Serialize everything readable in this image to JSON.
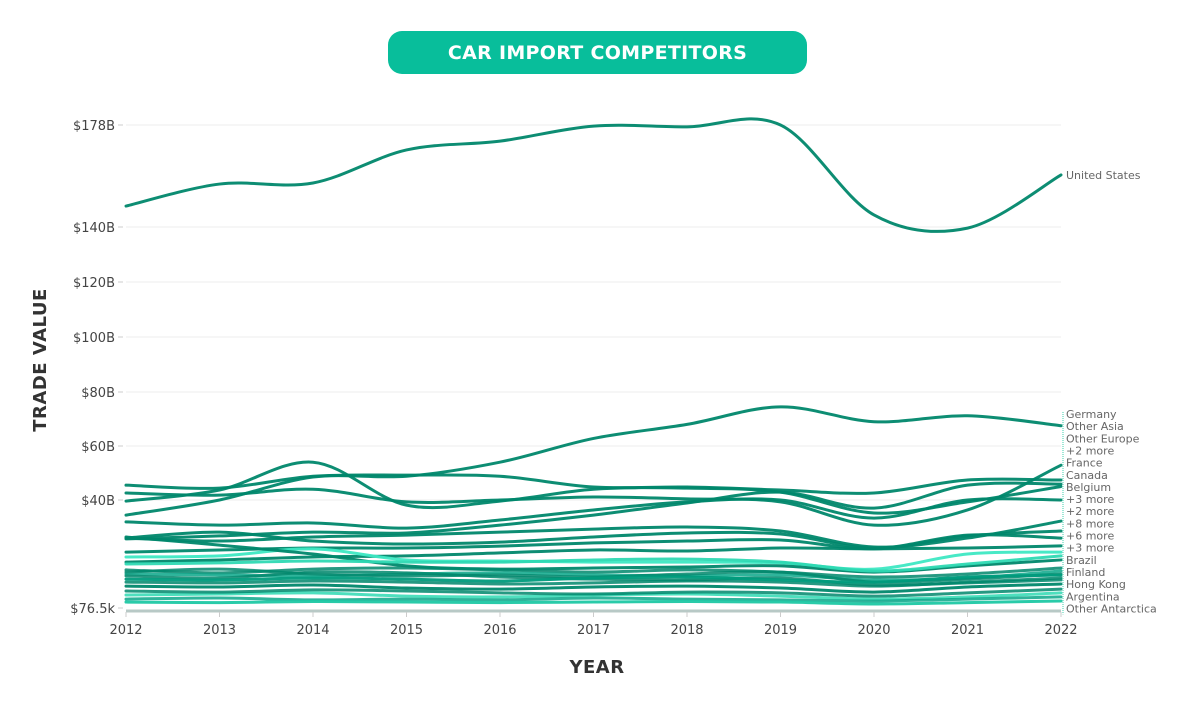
{
  "chart_data": {
    "type": "line",
    "title": "CAR IMPORT COMPETITORS",
    "xlabel": "YEAR",
    "ylabel": "TRADE VALUE",
    "x": [
      2012,
      2013,
      2014,
      2015,
      2016,
      2017,
      2018,
      2019,
      2020,
      2021,
      2022
    ],
    "x_tick_labels": [
      "2012",
      "2013",
      "2014",
      "2015",
      "2016",
      "2017",
      "2018",
      "2019",
      "2020",
      "2021",
      "2022"
    ],
    "y_ticks": [
      {
        "value": 7.65e-05,
        "label": "$76.5k"
      },
      {
        "value": 40,
        "label": "$40B"
      },
      {
        "value": 60,
        "label": "$60B"
      },
      {
        "value": 80,
        "label": "$80B"
      },
      {
        "value": 100,
        "label": "$100B"
      },
      {
        "value": 120,
        "label": "$120B"
      },
      {
        "value": 140,
        "label": "$140B"
      },
      {
        "value": 178,
        "label": "$178B"
      }
    ],
    "y_unit": "USD billions",
    "ylim": [
      7.65e-05,
      178
    ],
    "grid": true,
    "legend": "end-of-line labels (right)",
    "series": [
      {
        "name": "United States",
        "color": "#00876c",
        "values": [
          147.8,
          156.0,
          156.4,
          168.7,
          172.0,
          177.6,
          177.3,
          178.0,
          144.5,
          139.6,
          159.4
        ]
      },
      {
        "name": "Germany",
        "color": "#00876c",
        "values": [
          34.4,
          40.0,
          48.5,
          48.8,
          54.0,
          62.8,
          68.0,
          74.5,
          69.0,
          71.2,
          67.5
        ]
      },
      {
        "name": "Other Asia",
        "color": "#00876c",
        "values": [
          45.5,
          44.4,
          48.8,
          49.2,
          48.8,
          44.8,
          44.8,
          43.7,
          42.6,
          47.4,
          47.4
        ]
      },
      {
        "name": "Other Europe",
        "color": "#00876c",
        "values": [
          39.6,
          43.7,
          54.0,
          38.1,
          39.6,
          44.0,
          44.4,
          42.9,
          35.2,
          39.3,
          45.0
        ]
      },
      {
        "name": "France",
        "color": "#00876c",
        "values": [
          42.6,
          41.8,
          44.0,
          39.3,
          40.0,
          41.1,
          40.4,
          39.3,
          30.7,
          36.3,
          52.9
        ]
      },
      {
        "name": "Canada",
        "color": "#00876c",
        "values": [
          31.9,
          30.7,
          31.5,
          29.6,
          32.6,
          36.3,
          39.3,
          40.0,
          33.3,
          40.0,
          40.0
        ]
      },
      {
        "name": "Belgium",
        "color": "#00876c",
        "values": [
          25.6,
          26.7,
          28.1,
          27.8,
          30.7,
          34.4,
          38.9,
          42.9,
          37.0,
          45.5,
          45.9
        ]
      },
      {
        "name": "+3 more",
        "color": "#00876c",
        "values": [
          25.9,
          24.8,
          26.3,
          27.0,
          28.1,
          29.2,
          30.0,
          28.5,
          22.6,
          25.9,
          32.2
        ]
      },
      {
        "name": "+2 more",
        "color": "#00876c",
        "values": [
          20.7,
          21.5,
          22.2,
          22.2,
          22.9,
          24.1,
          24.8,
          25.2,
          21.9,
          26.7,
          28.5
        ]
      },
      {
        "name": "+8 more",
        "color": "#00876c",
        "values": [
          25.9,
          28.1,
          24.8,
          23.7,
          24.4,
          26.3,
          27.8,
          27.4,
          22.2,
          27.0,
          25.9
        ]
      },
      {
        "name": "+6 more",
        "color": "#00876c",
        "values": [
          17.0,
          17.8,
          18.9,
          19.3,
          20.4,
          21.5,
          21.1,
          22.2,
          21.9,
          22.2,
          23.0
        ]
      },
      {
        "name": "+3 more (2)",
        "color": "#3ee8c3",
        "values": [
          18.9,
          19.3,
          21.9,
          17.8,
          17.4,
          17.0,
          17.0,
          16.7,
          14.4,
          20.0,
          20.7
        ]
      },
      {
        "name": "Brazil",
        "color": "#00876c",
        "values": [
          26.3,
          23.3,
          20.0,
          15.6,
          14.4,
          14.8,
          15.2,
          15.6,
          13.3,
          15.6,
          17.8
        ]
      },
      {
        "name": "Finland",
        "color": "#2fd9b3",
        "values": [
          16.3,
          16.7,
          17.4,
          17.0,
          17.0,
          17.8,
          18.1,
          17.0,
          13.7,
          16.3,
          19.3
        ]
      },
      {
        "name": "Hong Kong",
        "color": "#009b7c",
        "values": [
          10.7,
          10.4,
          11.1,
          10.7,
          10.0,
          11.1,
          11.5,
          10.4,
          9.6,
          11.5,
          12.2
        ]
      },
      {
        "name": "Argentina",
        "color": "#00876c",
        "values": [
          8.1,
          7.8,
          8.5,
          7.4,
          7.0,
          7.8,
          8.1,
          7.4,
          5.9,
          7.8,
          8.9
        ]
      },
      {
        "name": "Other Antarctica",
        "color": "#1fc8a4",
        "values": [
          2.2,
          2.0,
          2.4,
          2.2,
          2.0,
          2.2,
          2.4,
          2.2,
          1.5,
          2.0,
          2.6
        ]
      },
      {
        "name": "",
        "color": "#00876c",
        "values": [
          14.1,
          13.0,
          14.4,
          14.8,
          14.1,
          13.3,
          14.1,
          13.3,
          11.5,
          12.6,
          14.8
        ]
      },
      {
        "name": "",
        "color": "#0aa789",
        "values": [
          12.6,
          12.2,
          11.9,
          12.6,
          13.0,
          12.2,
          11.9,
          12.2,
          10.4,
          11.1,
          13.7
        ]
      },
      {
        "name": "",
        "color": "#00876c",
        "values": [
          9.6,
          9.3,
          10.0,
          9.6,
          8.9,
          9.3,
          10.0,
          9.6,
          8.1,
          9.6,
          11.1
        ]
      },
      {
        "name": "",
        "color": "#2fd9b3",
        "values": [
          4.8,
          5.2,
          5.6,
          4.4,
          4.1,
          4.8,
          5.2,
          4.4,
          3.3,
          4.1,
          5.6
        ]
      },
      {
        "name": "",
        "color": "#00876c",
        "values": [
          6.3,
          5.9,
          6.7,
          6.3,
          5.6,
          5.2,
          5.9,
          5.6,
          4.4,
          5.6,
          7.0
        ]
      },
      {
        "name": "",
        "color": "#0aa789",
        "values": [
          3.3,
          3.7,
          3.0,
          3.3,
          3.0,
          3.7,
          3.3,
          3.0,
          2.6,
          3.3,
          4.1
        ]
      },
      {
        "name": "",
        "color": "#00876c",
        "values": [
          13.3,
          14.4,
          12.6,
          11.9,
          12.2,
          11.5,
          12.6,
          13.3,
          9.6,
          10.7,
          12.6
        ]
      },
      {
        "name": "",
        "color": "#00876c",
        "values": [
          11.9,
          11.1,
          13.3,
          13.0,
          11.5,
          10.7,
          10.4,
          11.1,
          8.5,
          9.3,
          10.4
        ]
      }
    ],
    "end_labels": [
      "United States",
      "Germany",
      "Other Asia",
      "Other Europe",
      "+2 more",
      "France",
      "Canada",
      "Belgium",
      "+3 more",
      "+2 more",
      "+8 more",
      "+6 more",
      "+3 more",
      "Brazil",
      "Finland",
      "Hong Kong",
      "Argentina",
      "Other Antarctica"
    ]
  }
}
